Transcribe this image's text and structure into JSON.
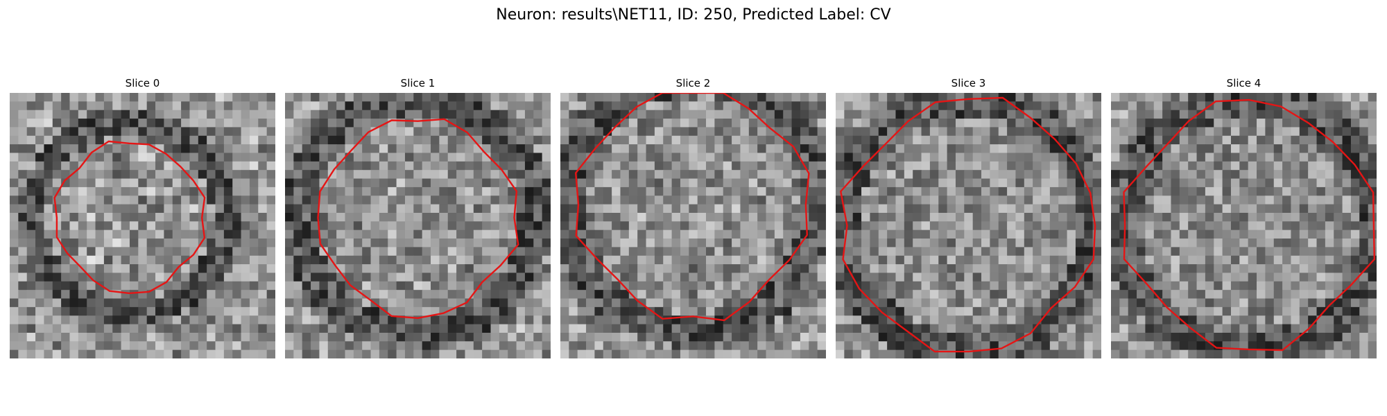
{
  "figure": {
    "title": "Neuron: results\\NET11, ID: 250, Predicted Label: CV"
  },
  "panels": [
    {
      "title": "Slice 0"
    },
    {
      "title": "Slice 1"
    },
    {
      "title": "Slice 2"
    },
    {
      "title": "Slice 3"
    },
    {
      "title": "Slice 4"
    }
  ],
  "colors": {
    "contour": "#e51515",
    "background": "#ffffff",
    "image_colormap": "grayscale"
  }
}
